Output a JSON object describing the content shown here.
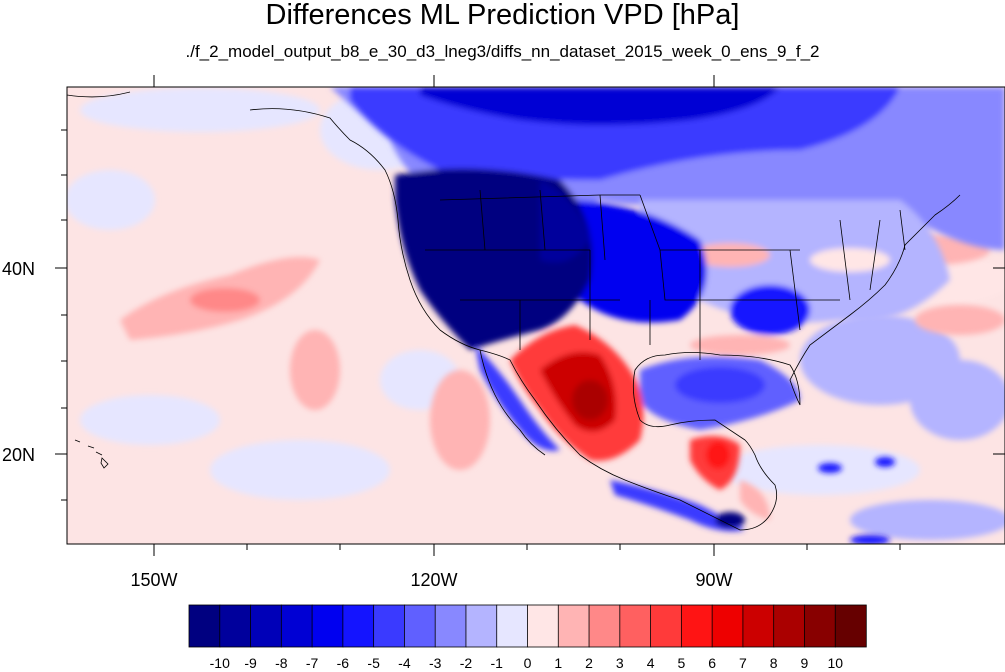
{
  "title": "Differences ML Prediction VPD [hPa]",
  "subtitle": "./f_2_model_output_b8_e_30_d3_lneg3/diffs_nn_dataset_2015_week_0_ens_9_f_2",
  "x_ticks": [
    {
      "label": "150W",
      "lon": -150
    },
    {
      "label": "120W",
      "lon": -120
    },
    {
      "label": "90W",
      "lon": -90
    }
  ],
  "y_ticks": [
    {
      "label": "40N",
      "lat": 40
    },
    {
      "label": "20N",
      "lat": 20
    }
  ],
  "colorbar": {
    "labels": [
      "-10",
      "-9",
      "-8",
      "-7",
      "-6",
      "-5",
      "-4",
      "-3",
      "-2",
      "-1",
      "0",
      "1",
      "2",
      "3",
      "4",
      "5",
      "6",
      "7",
      "8",
      "9",
      "10"
    ],
    "colors": [
      "#000080",
      "#00009c",
      "#0000b8",
      "#0000d4",
      "#0000f0",
      "#1414ff",
      "#3a3aff",
      "#6060ff",
      "#8888ff",
      "#b4b4ff",
      "#e6e6ff",
      "#ffe6e6",
      "#ffb4b4",
      "#ff8888",
      "#ff6060",
      "#ff3a3a",
      "#ff1414",
      "#ee0000",
      "#cc0000",
      "#aa0000",
      "#880000",
      "#660000"
    ]
  },
  "colors": {
    "ocean_pale_pink": "#fde4e4",
    "deep_blue": "#000080",
    "strong_red": "#cc0000"
  }
}
